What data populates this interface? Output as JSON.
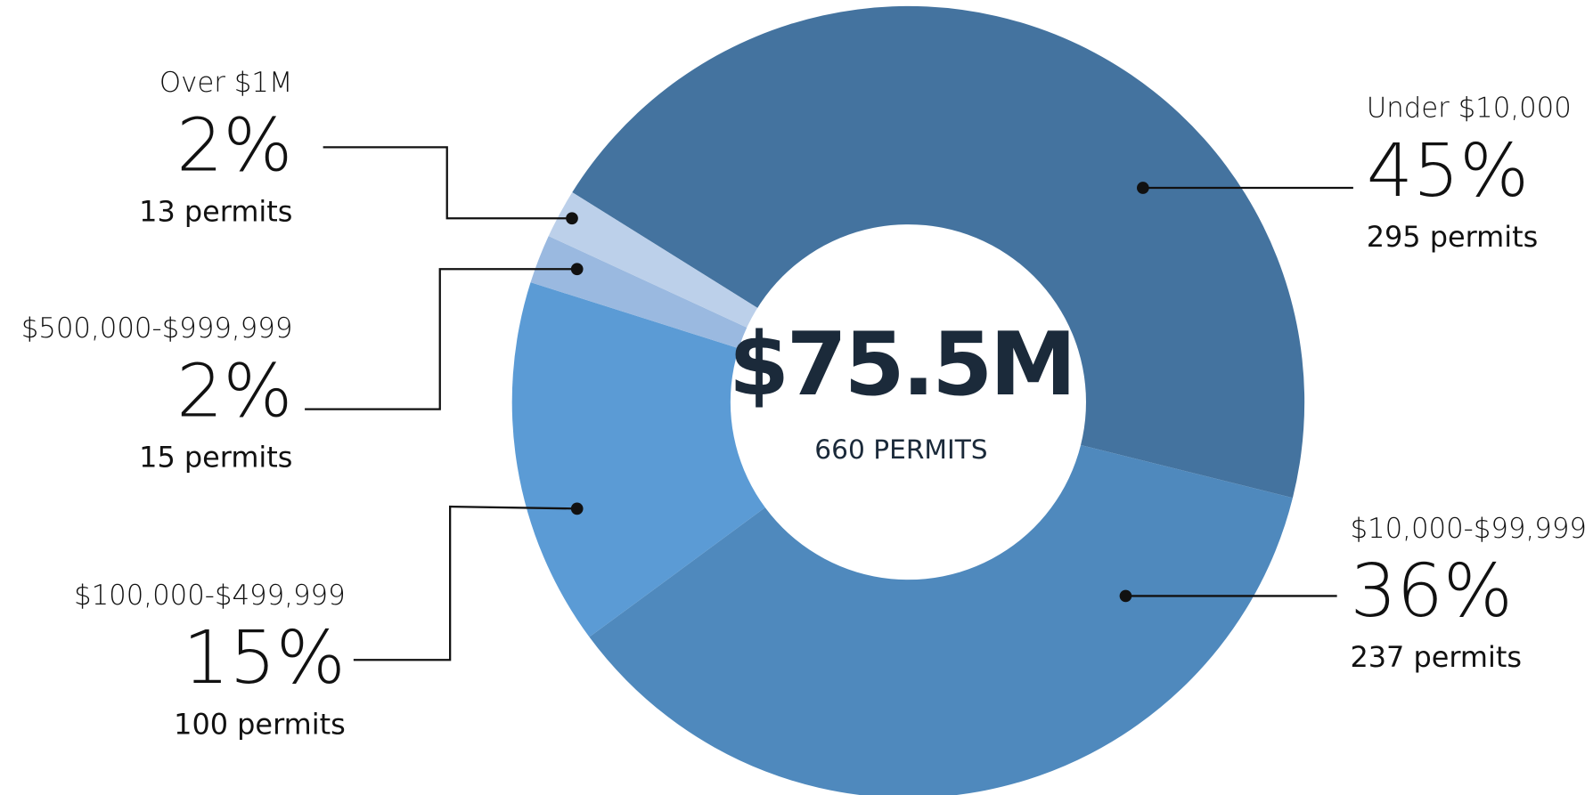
{
  "chart_data": {
    "type": "pie",
    "total_label": "$75.5M",
    "subtitle": "660 PERMITS",
    "categories": [
      "Under $10,000",
      "$10,000-$99,999",
      "$100,000-$499,999",
      "$500,000-$999,999",
      "Over $1M"
    ],
    "values": [
      45,
      36,
      15,
      2,
      2
    ],
    "value_labels": [
      "45%",
      "36%",
      "15%",
      "2%",
      "2%"
    ],
    "permit_labels": [
      "295 permits",
      "237 permits",
      "100 permits",
      "15 permits",
      "13 permits"
    ],
    "colors": [
      "#44739f",
      "#4f89bd",
      "#5b9bd5",
      "#9ab9e0",
      "#bcd0ea"
    ]
  }
}
